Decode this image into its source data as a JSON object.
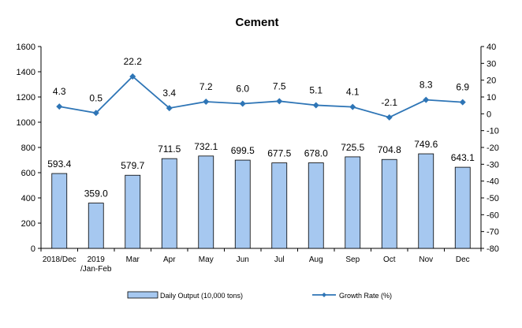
{
  "chart_data": {
    "type": "bar",
    "title": "Cement",
    "categories": [
      "2018/Dec",
      "2019\n/Jan-Feb",
      "Mar",
      "Apr",
      "May",
      "Jun",
      "Jul",
      "Aug",
      "Sep",
      "Oct",
      "Nov",
      "Dec"
    ],
    "series": [
      {
        "name": "Daily Output (10,000 tons)",
        "type": "bar",
        "axis": "left",
        "color": "#a6c8f0",
        "values": [
          593.4,
          359.0,
          579.7,
          711.5,
          732.1,
          699.5,
          677.5,
          678.0,
          725.5,
          704.8,
          749.6,
          643.1
        ],
        "labels": [
          "593.4",
          "359.0",
          "579.7",
          "711.5",
          "732.1",
          "699.5",
          "677.5",
          "678.0",
          "725.5",
          "704.8",
          "749.6",
          "643.1"
        ]
      },
      {
        "name": "Growth Rate (%)",
        "type": "line",
        "axis": "right",
        "color": "#2e75b6",
        "values": [
          4.3,
          0.5,
          22.2,
          3.4,
          7.2,
          6.0,
          7.5,
          5.1,
          4.1,
          -2.1,
          8.3,
          6.9
        ],
        "labels": [
          "4.3",
          "0.5",
          "22.2",
          "3.4",
          "7.2",
          "6.0",
          "7.5",
          "5.1",
          "4.1",
          "-2.1",
          "8.3",
          "6.9"
        ]
      }
    ],
    "y_left": {
      "min": 0,
      "max": 1600,
      "ticks": [
        0,
        200,
        400,
        600,
        800,
        1000,
        1200,
        1400,
        1600
      ]
    },
    "y_right": {
      "min": -80,
      "max": 40,
      "ticks": [
        -80,
        -70,
        -60,
        -50,
        -40,
        -30,
        -20,
        -10,
        0,
        10,
        20,
        30,
        40
      ]
    },
    "grid": false,
    "legend": "bottom"
  }
}
